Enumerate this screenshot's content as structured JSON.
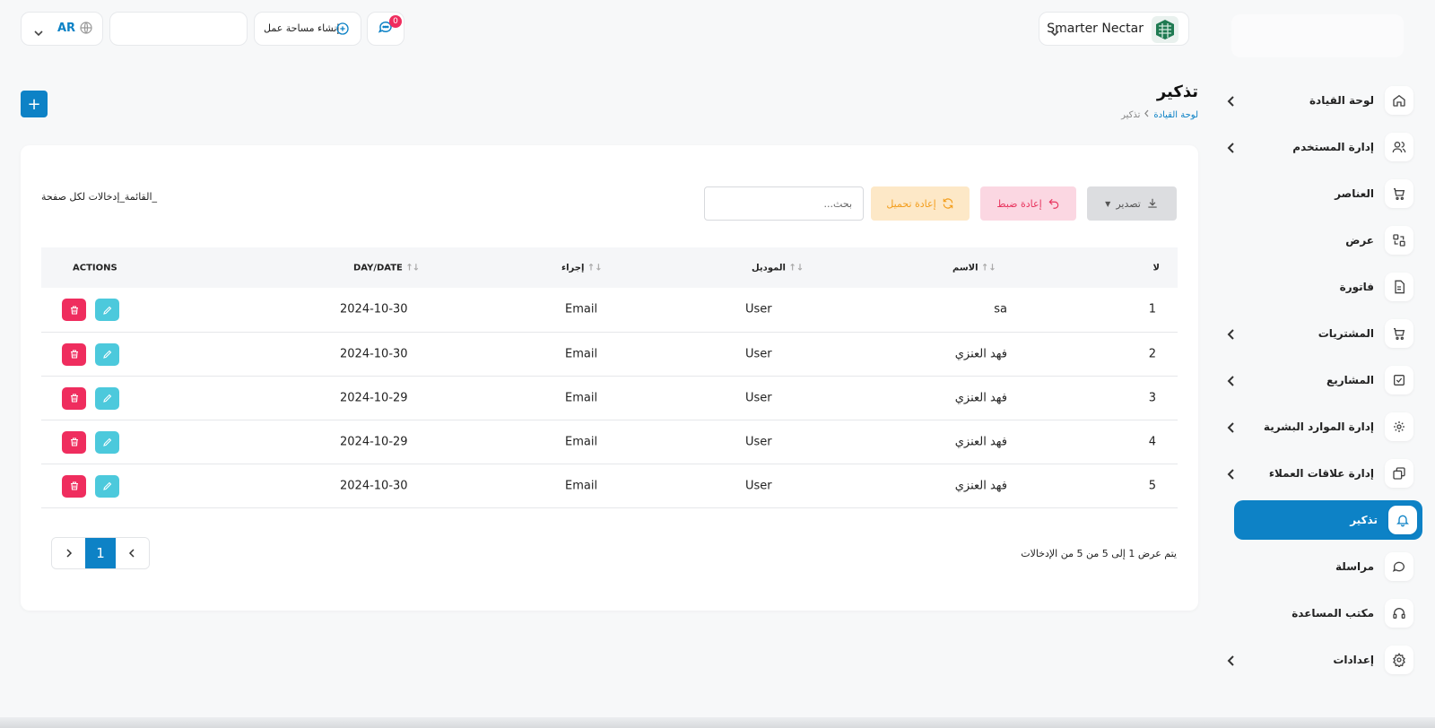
{
  "topbar": {
    "brand_name": "Smarter Nectar",
    "language_code": "AR",
    "create_workspace_label": "إنشاء مساحة عمل",
    "chat_badge_count": "0"
  },
  "sidebar": {
    "items": [
      {
        "label": "لوحة القيادة",
        "icon": "home-icon",
        "has_children": true,
        "active": false
      },
      {
        "label": "إدارة المستخدم",
        "icon": "users-icon",
        "has_children": true,
        "active": false
      },
      {
        "label": "العناصر",
        "icon": "cart-icon",
        "has_children": false,
        "active": false
      },
      {
        "label": "عرض",
        "icon": "swap-icon",
        "has_children": false,
        "active": false
      },
      {
        "label": "فاتورة",
        "icon": "invoice-icon",
        "has_children": false,
        "active": false
      },
      {
        "label": "المشتريات",
        "icon": "cart-icon",
        "has_children": true,
        "active": false
      },
      {
        "label": "المشاريع",
        "icon": "checkbox-icon",
        "has_children": true,
        "active": false
      },
      {
        "label": "إدارة الموارد البشرية",
        "icon": "hr-icon",
        "has_children": true,
        "active": false
      },
      {
        "label": "إدارة علاقات العملاء",
        "icon": "crm-icon",
        "has_children": true,
        "active": false
      },
      {
        "label": "تذكير",
        "icon": "bell-icon",
        "has_children": false,
        "active": true
      },
      {
        "label": "مراسلة",
        "icon": "message-icon",
        "has_children": false,
        "active": false
      },
      {
        "label": "مكتب المساعدة",
        "icon": "headset-icon",
        "has_children": false,
        "active": false
      },
      {
        "label": "إعدادات",
        "icon": "gear-icon",
        "has_children": true,
        "active": false
      }
    ]
  },
  "page": {
    "title": "تذكير",
    "breadcrumb_home": "لوحة القيادة",
    "breadcrumb_current": "تذكير",
    "add_label": "+"
  },
  "toolbar": {
    "export_label": "تصدير",
    "reset_label": "إعادة ضبط",
    "reload_label": "إعادة تحميل",
    "search_placeholder": "بحث...",
    "per_page_label": "_القائمة_إدخالات لكل صفحة"
  },
  "table": {
    "columns": [
      "لا",
      "الاسم",
      "الموديل",
      "إجراء",
      "DAY/DATE",
      "ACTIONS"
    ],
    "rows": [
      {
        "no": "1",
        "name": "sa",
        "model": "User",
        "action": "Email",
        "date": "2024-10-30"
      },
      {
        "no": "2",
        "name": "فهد العنزي",
        "model": "User",
        "action": "Email",
        "date": "2024-10-30"
      },
      {
        "no": "3",
        "name": "فهد العنزي",
        "model": "User",
        "action": "Email",
        "date": "2024-10-29"
      },
      {
        "no": "4",
        "name": "فهد العنزي",
        "model": "User",
        "action": "Email",
        "date": "2024-10-29"
      },
      {
        "no": "5",
        "name": "فهد العنزي",
        "model": "User",
        "action": "Email",
        "date": "2024-10-30"
      }
    ]
  },
  "pagination": {
    "current_page": "1",
    "info": "يتم عرض 1 إلى 5 من 5 من الإدخالات"
  },
  "colors": {
    "accent": "#0d82c6",
    "danger": "#ef2d5e",
    "edit": "#4cc9dc",
    "warning": "#f39e1d"
  }
}
